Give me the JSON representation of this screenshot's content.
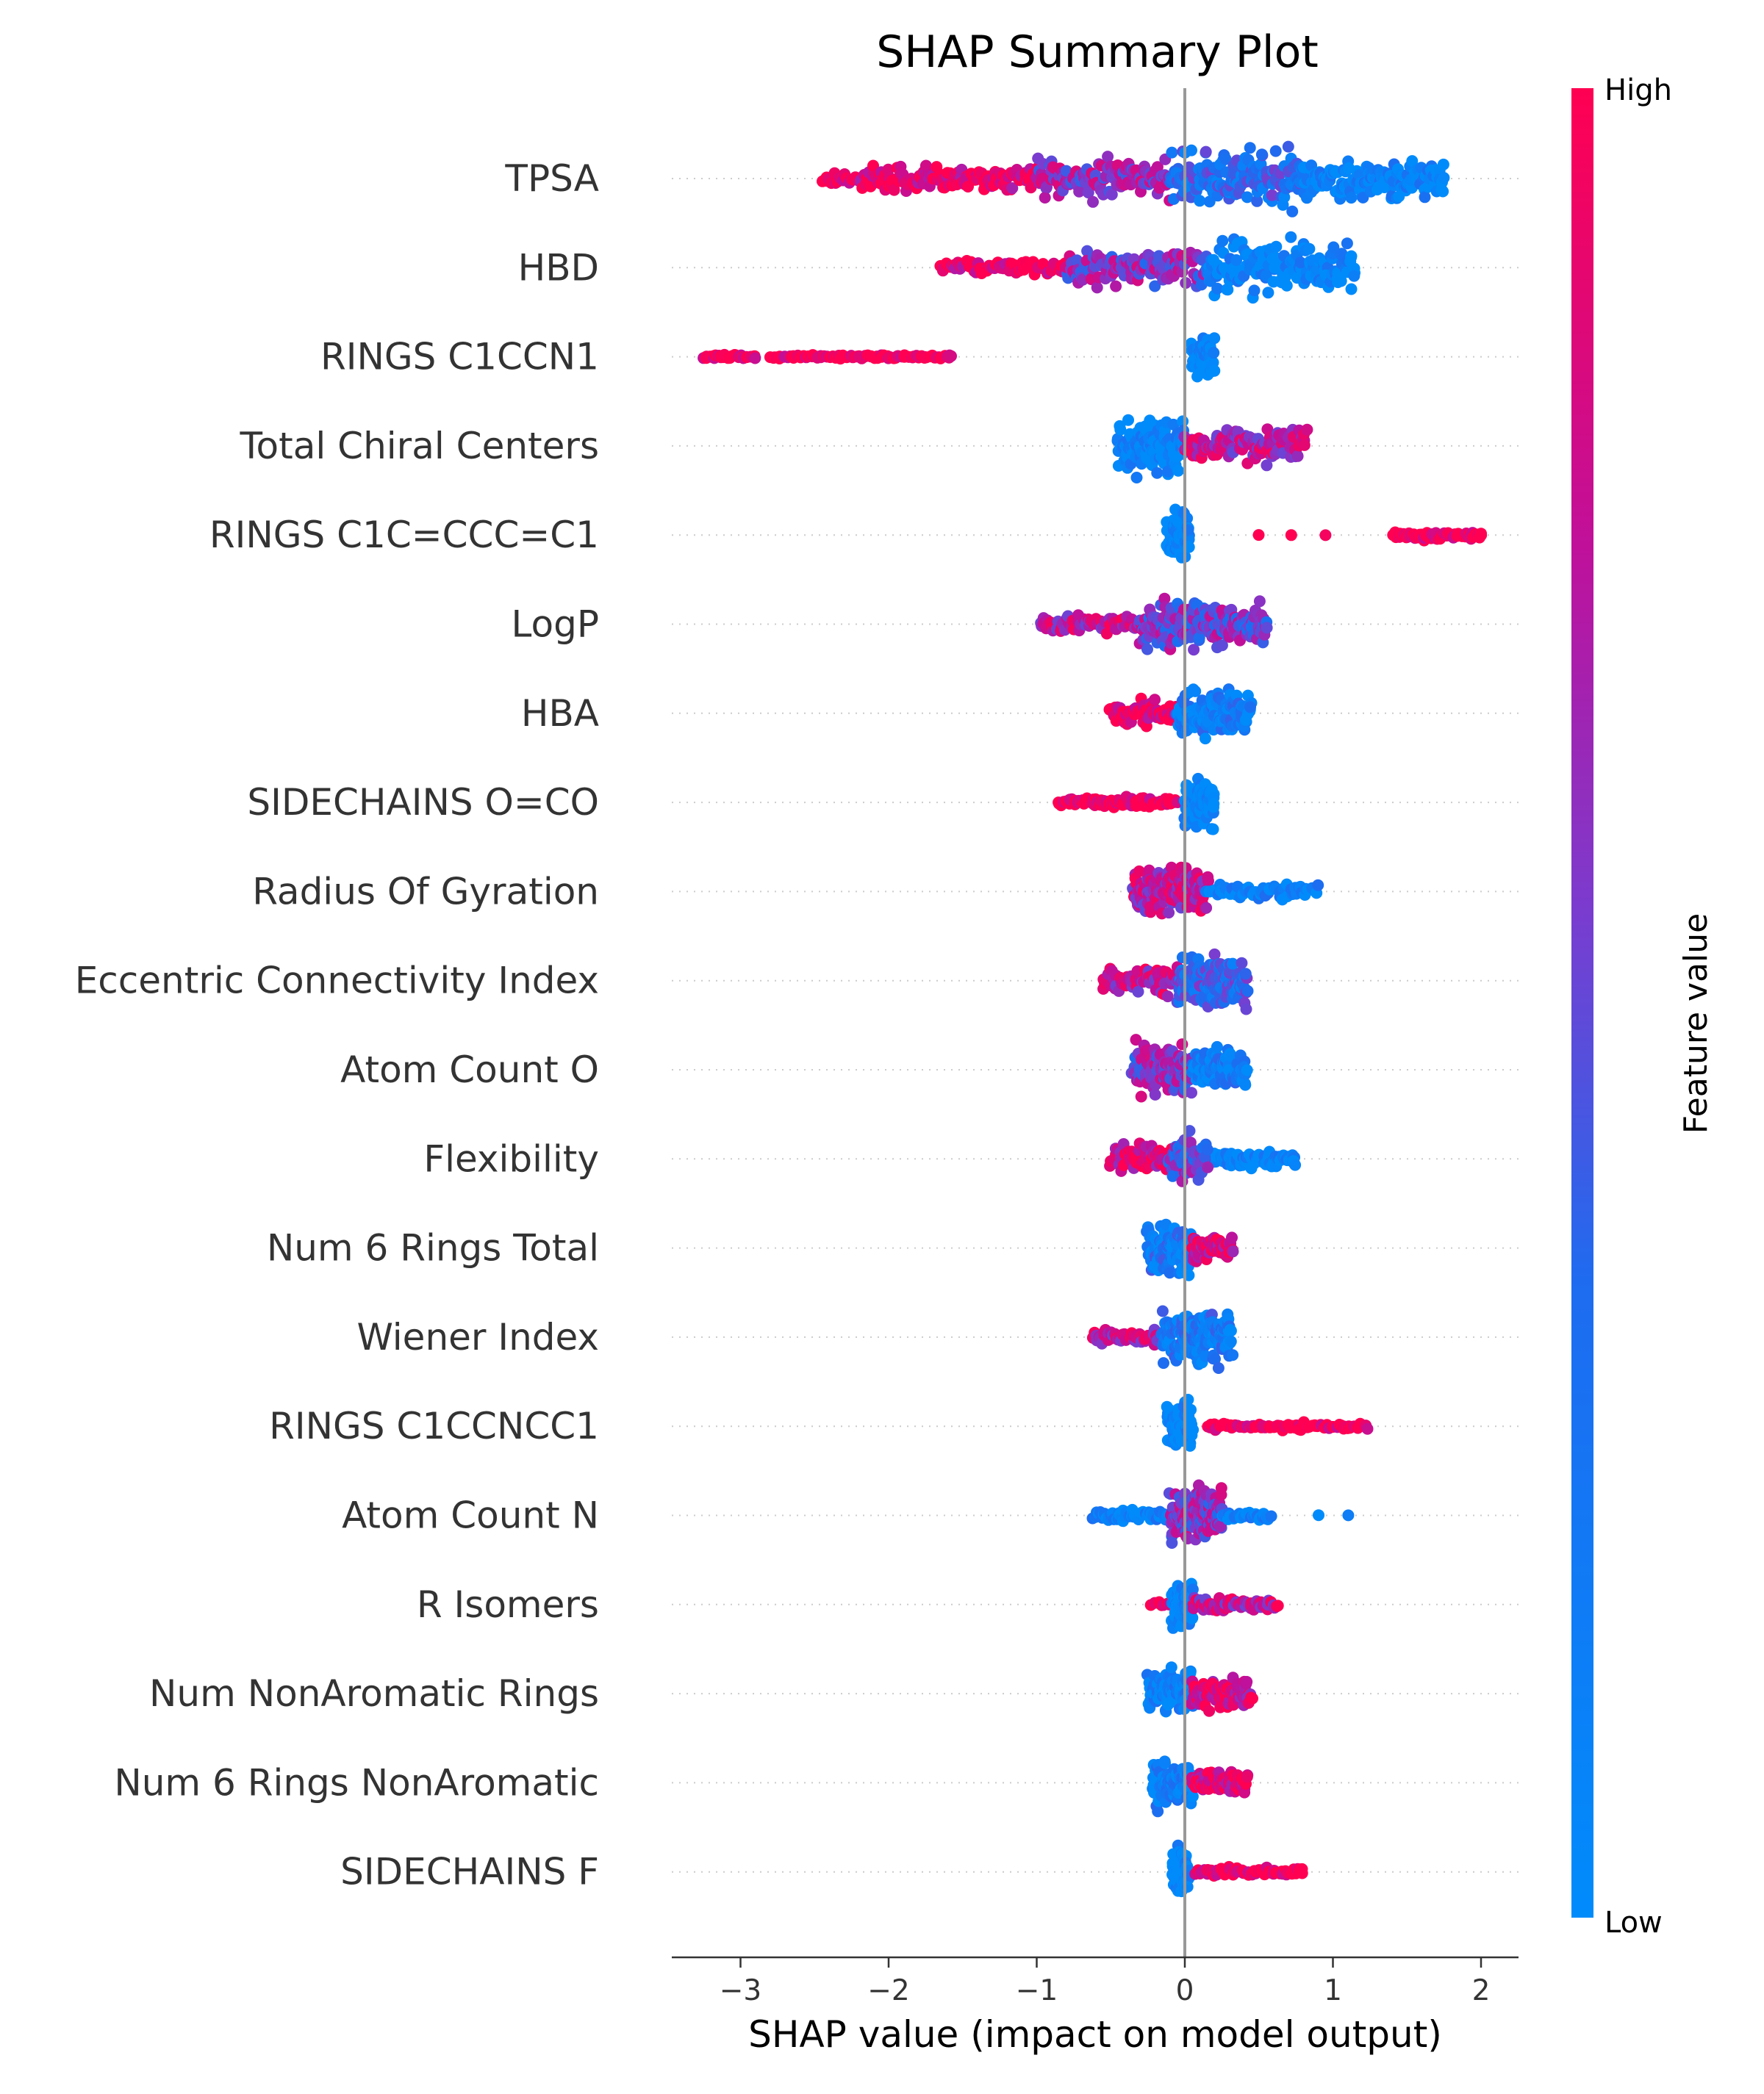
{
  "chart_data": {
    "type": "scatter",
    "subtype": "shap-beeswarm",
    "title": "SHAP Summary Plot",
    "xlabel": "SHAP value (impact on model output)",
    "ylabel": "",
    "xlim": [
      -3.5,
      2.3
    ],
    "xticks": [
      -3,
      -2,
      -1,
      0,
      1,
      2
    ],
    "xtick_labels": [
      "−3",
      "−2",
      "−1",
      "0",
      "1",
      "2"
    ],
    "grid": false,
    "colorbar": {
      "label": "Feature value",
      "high_label": "High",
      "low_label": "Low",
      "low_color": "#008bfb",
      "high_color": "#ff0052"
    },
    "features": [
      {
        "name": "TPSA",
        "clusters": [
          {
            "from": -2.45,
            "to": -2.2,
            "high": 1.0,
            "n": 20,
            "spread": 0.25
          },
          {
            "from": -2.2,
            "to": -1.0,
            "high": 0.92,
            "n": 140,
            "spread": 0.45
          },
          {
            "from": -1.0,
            "to": -0.1,
            "high": 0.65,
            "n": 130,
            "spread": 0.7
          },
          {
            "from": -0.1,
            "to": 0.8,
            "high": 0.3,
            "n": 160,
            "spread": 1.0
          },
          {
            "from": 0.8,
            "to": 1.75,
            "high": 0.08,
            "n": 150,
            "spread": 0.7
          }
        ]
      },
      {
        "name": "HBD",
        "clusters": [
          {
            "from": -1.65,
            "to": -0.8,
            "high": 0.95,
            "n": 70,
            "spread": 0.25
          },
          {
            "from": -0.8,
            "to": 0.15,
            "high": 0.6,
            "n": 120,
            "spread": 0.6
          },
          {
            "from": 0.15,
            "to": 1.15,
            "high": 0.05,
            "n": 150,
            "spread": 0.95
          }
        ]
      },
      {
        "name": "RINGS C1CCN1",
        "clusters": [
          {
            "from": -3.25,
            "to": -2.9,
            "high": 1.0,
            "n": 30,
            "spread": 0.08
          },
          {
            "from": -2.8,
            "to": -1.57,
            "high": 1.0,
            "n": 90,
            "spread": 0.08
          },
          {
            "from": 0.05,
            "to": 0.2,
            "high": 0.0,
            "n": 70,
            "spread": 0.7
          }
        ]
      },
      {
        "name": "Total Chiral Centers",
        "clusters": [
          {
            "from": -0.45,
            "to": 0.0,
            "high": 0.05,
            "n": 130,
            "spread": 0.9
          },
          {
            "from": 0.0,
            "to": 0.82,
            "high": 0.75,
            "n": 120,
            "spread": 0.6
          }
        ]
      },
      {
        "name": "RINGS C1C=CCC=C1",
        "clusters": [
          {
            "from": -0.12,
            "to": 0.03,
            "high": 0.0,
            "n": 80,
            "spread": 0.85
          },
          {
            "from": 0.5,
            "to": 0.95,
            "high": 1.0,
            "n": 3,
            "spread": 0.02
          },
          {
            "from": 1.4,
            "to": 2.0,
            "high": 1.0,
            "n": 70,
            "spread": 0.15
          }
        ]
      },
      {
        "name": "LogP",
        "clusters": [
          {
            "from": -0.98,
            "to": -0.3,
            "high": 0.75,
            "n": 70,
            "spread": 0.3
          },
          {
            "from": -0.3,
            "to": 0.55,
            "high": 0.55,
            "n": 190,
            "spread": 0.85
          }
        ]
      },
      {
        "name": "HBA",
        "clusters": [
          {
            "from": -0.5,
            "to": -0.05,
            "high": 0.95,
            "n": 70,
            "spread": 0.45
          },
          {
            "from": -0.05,
            "to": 0.45,
            "high": 0.15,
            "n": 120,
            "spread": 0.85
          }
        ]
      },
      {
        "name": "SIDECHAINS O=CO",
        "clusters": [
          {
            "from": -0.85,
            "to": -0.05,
            "high": 1.0,
            "n": 90,
            "spread": 0.18
          },
          {
            "from": 0.0,
            "to": 0.2,
            "high": 0.0,
            "n": 90,
            "spread": 0.8
          }
        ]
      },
      {
        "name": "Radius Of Gyration",
        "clusters": [
          {
            "from": -0.35,
            "to": 0.15,
            "high": 0.75,
            "n": 160,
            "spread": 0.9
          },
          {
            "from": 0.15,
            "to": 0.9,
            "high": 0.1,
            "n": 60,
            "spread": 0.3
          }
        ]
      },
      {
        "name": "Eccentric Connectivity Index",
        "clusters": [
          {
            "from": -0.55,
            "to": -0.05,
            "high": 0.75,
            "n": 60,
            "spread": 0.55
          },
          {
            "from": -0.05,
            "to": 0.42,
            "high": 0.35,
            "n": 160,
            "spread": 0.9
          }
        ]
      },
      {
        "name": "Atom Count O",
        "clusters": [
          {
            "from": -0.35,
            "to": 0.05,
            "high": 0.6,
            "n": 110,
            "spread": 0.85
          },
          {
            "from": 0.05,
            "to": 0.42,
            "high": 0.15,
            "n": 100,
            "spread": 0.7
          }
        ]
      },
      {
        "name": "Flexibility",
        "clusters": [
          {
            "from": -0.5,
            "to": 0.1,
            "high": 0.85,
            "n": 100,
            "spread": 0.5
          },
          {
            "from": 0.1,
            "to": 0.75,
            "high": 0.05,
            "n": 100,
            "spread": 0.3
          },
          {
            "from": -0.1,
            "to": 0.15,
            "high": 0.5,
            "n": 60,
            "spread": 0.9
          }
        ]
      },
      {
        "name": "Num 6 Rings Total",
        "clusters": [
          {
            "from": -0.25,
            "to": 0.05,
            "high": 0.2,
            "n": 100,
            "spread": 0.9
          },
          {
            "from": 0.05,
            "to": 0.32,
            "high": 0.85,
            "n": 70,
            "spread": 0.45
          }
        ]
      },
      {
        "name": "Wiener Index",
        "clusters": [
          {
            "from": -0.62,
            "to": -0.15,
            "high": 0.75,
            "n": 50,
            "spread": 0.25
          },
          {
            "from": -0.15,
            "to": 0.32,
            "high": 0.2,
            "n": 170,
            "spread": 0.9
          }
        ]
      },
      {
        "name": "RINGS C1CCNCC1",
        "clusters": [
          {
            "from": -0.12,
            "to": 0.05,
            "high": 0.0,
            "n": 80,
            "spread": 0.85
          },
          {
            "from": 0.15,
            "to": 1.23,
            "high": 1.0,
            "n": 80,
            "spread": 0.12
          }
        ]
      },
      {
        "name": "Atom Count N",
        "clusters": [
          {
            "from": -0.62,
            "to": -0.1,
            "high": 0.1,
            "n": 60,
            "spread": 0.2
          },
          {
            "from": -0.1,
            "to": 0.25,
            "high": 0.6,
            "n": 170,
            "spread": 0.95
          },
          {
            "from": 0.25,
            "to": 0.58,
            "high": 0.1,
            "n": 30,
            "spread": 0.2
          },
          {
            "from": 0.9,
            "to": 1.1,
            "high": 0.0,
            "n": 2,
            "spread": 0.02
          }
        ]
      },
      {
        "name": "R Isomers",
        "clusters": [
          {
            "from": -0.22,
            "to": -0.05,
            "high": 0.95,
            "n": 10,
            "spread": 0.1
          },
          {
            "from": -0.08,
            "to": 0.05,
            "high": 0.0,
            "n": 80,
            "spread": 0.9
          },
          {
            "from": 0.05,
            "to": 0.62,
            "high": 0.75,
            "n": 70,
            "spread": 0.25
          }
        ]
      },
      {
        "name": "Num NonAromatic Rings",
        "clusters": [
          {
            "from": -0.25,
            "to": 0.05,
            "high": 0.1,
            "n": 100,
            "spread": 0.85
          },
          {
            "from": 0.05,
            "to": 0.45,
            "high": 0.85,
            "n": 90,
            "spread": 0.55
          }
        ]
      },
      {
        "name": "Num 6 Rings NonAromatic",
        "clusters": [
          {
            "from": -0.22,
            "to": 0.05,
            "high": 0.15,
            "n": 90,
            "spread": 0.85
          },
          {
            "from": 0.05,
            "to": 0.42,
            "high": 0.9,
            "n": 100,
            "spread": 0.4
          }
        ]
      },
      {
        "name": "SIDECHAINS F",
        "clusters": [
          {
            "from": -0.08,
            "to": 0.03,
            "high": 0.0,
            "n": 80,
            "spread": 0.85
          },
          {
            "from": 0.08,
            "to": 0.8,
            "high": 1.0,
            "n": 70,
            "spread": 0.15
          }
        ]
      }
    ]
  }
}
